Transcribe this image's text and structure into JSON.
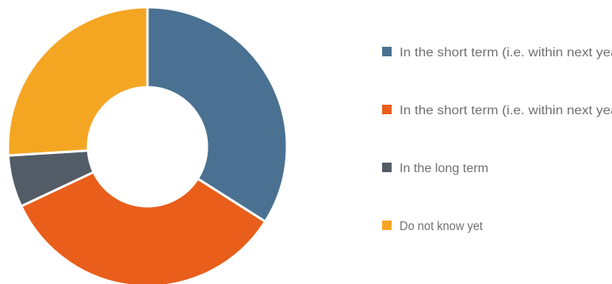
{
  "chart_data": {
    "type": "pie",
    "donut": true,
    "legend_position": "right",
    "series": [
      {
        "name": "In the short term (i.e. within next year)",
        "value": 34,
        "color": "#4a7191"
      },
      {
        "name": "In the short term (i.e. within next year)",
        "value": 34,
        "color": "#e95e1a"
      },
      {
        "name": "In the long term",
        "value": 6,
        "color": "#525c67"
      },
      {
        "name": "Do not know yet",
        "value": 26,
        "color": "#f4a623"
      }
    ]
  }
}
